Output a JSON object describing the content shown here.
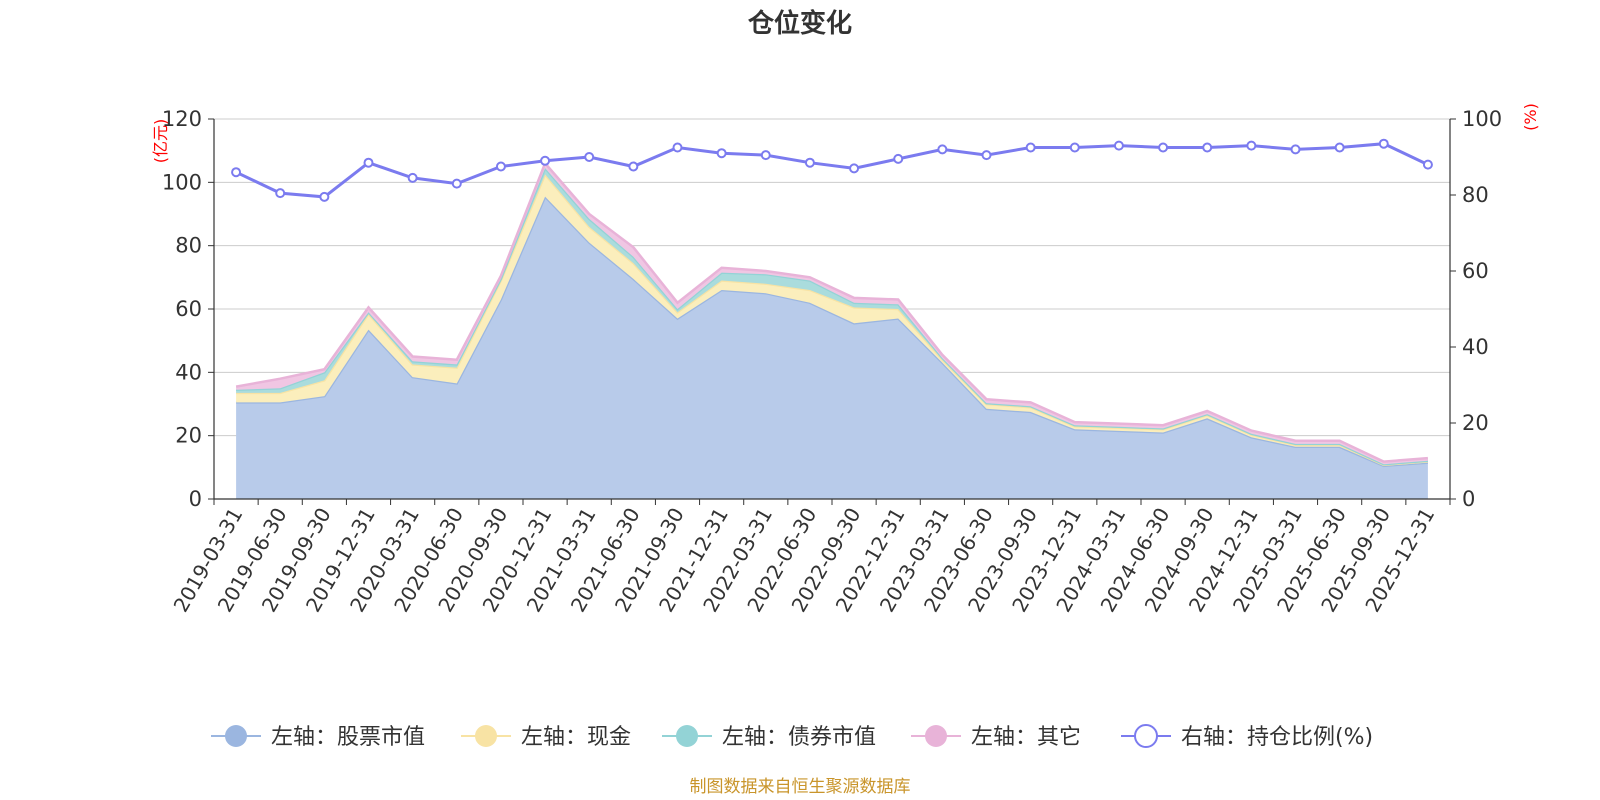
{
  "chart_data": {
    "type": "area",
    "title": "仓位变化",
    "categories": [
      "2019-03-31",
      "2019-06-30",
      "2019-09-30",
      "2019-12-31",
      "2020-03-31",
      "2020-06-30",
      "2020-09-30",
      "2020-12-31",
      "2021-03-31",
      "2021-06-30",
      "2021-09-30",
      "2021-12-31",
      "2022-03-31",
      "2022-06-30",
      "2022-09-30",
      "2022-12-31",
      "2023-03-31",
      "2023-06-30",
      "2023-09-30",
      "2023-12-31",
      "2024-03-31",
      "2024-06-30",
      "2024-09-30",
      "2024-12-31",
      "2025-03-31",
      "2025-06-30",
      "2025-09-30",
      "2025-12-31"
    ],
    "left_axis": {
      "unit": "(亿元)",
      "min": 0,
      "max": 120,
      "ticks": [
        0,
        20,
        40,
        60,
        80,
        100,
        120
      ]
    },
    "right_axis": {
      "unit": "(%)",
      "min": 0,
      "max": 100,
      "ticks": [
        0,
        20,
        40,
        60,
        80,
        100
      ]
    },
    "series": [
      {
        "name": "左轴：股票市值",
        "axis": "left",
        "stacked": true,
        "color": "#9bb6e0",
        "fill": "#b8cbea",
        "values": [
          30.5,
          30.5,
          32.5,
          53.5,
          38.5,
          36.5,
          63,
          95.5,
          81,
          69.5,
          57,
          66,
          65,
          62,
          55.5,
          57,
          43,
          28.5,
          27.5,
          22,
          21.5,
          21,
          25.5,
          19.5,
          16.5,
          16.5,
          10.5,
          11.5
        ]
      },
      {
        "name": "左轴：现金",
        "axis": "left",
        "stacked": true,
        "color": "#f8e3a4",
        "fill": "#fbeebc",
        "values": [
          3,
          3,
          5,
          5,
          4,
          5,
          6,
          7,
          5,
          5,
          2,
          3,
          3,
          4,
          5,
          3,
          1,
          1.5,
          1.5,
          1,
          1,
          1,
          1,
          0.8,
          0.6,
          0.6,
          0.3,
          0.4
        ]
      },
      {
        "name": "左轴：债券市值",
        "axis": "left",
        "stacked": true,
        "color": "#93d3d6",
        "fill": "#aadcdd",
        "values": [
          1,
          1.5,
          2.5,
          0.5,
          1,
          1,
          0.5,
          2,
          2.5,
          2,
          1,
          2.5,
          3,
          3,
          1.5,
          1.5,
          0.5,
          0.3,
          0.3,
          0.3,
          0.3,
          0.3,
          0.3,
          0.3,
          0.3,
          0.3,
          0.2,
          0.2
        ]
      },
      {
        "name": "左轴：其它",
        "axis": "left",
        "stacked": true,
        "color": "#e8b3d8",
        "fill": "#f0c6e3",
        "values": [
          1,
          3,
          1,
          1.5,
          1.5,
          1.5,
          1,
          1.5,
          1.5,
          3,
          2,
          1.5,
          1,
          1,
          1.5,
          1.5,
          1,
          1.2,
          1.2,
          1,
          1,
          1,
          1,
          1,
          1,
          1,
          0.8,
          0.8
        ]
      },
      {
        "name": "右轴：持仓比例(%)",
        "axis": "right",
        "stacked": false,
        "type": "line",
        "color": "#7b7bef",
        "values": [
          86,
          80.5,
          79.5,
          88.5,
          84.5,
          83,
          87.5,
          89,
          90,
          87.5,
          92.5,
          91,
          90.5,
          88.5,
          87,
          89.5,
          92,
          90.5,
          92.5,
          92.5,
          93,
          92.5,
          92.5,
          93,
          92,
          92.5,
          93.5,
          88
        ]
      }
    ],
    "grid": true,
    "legend_position": "bottom-center",
    "footer": "制图数据来自恒生聚源数据库"
  }
}
